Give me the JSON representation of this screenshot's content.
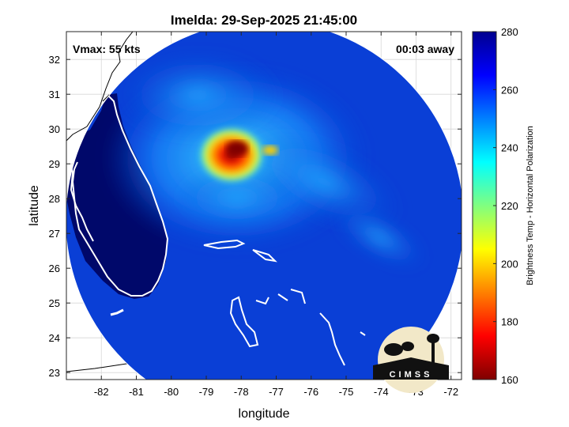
{
  "title": "Imelda: 29-Sep-2025 21:45:00",
  "annotations": {
    "vmax": "Vmax: 55 kts",
    "time_away": "00:03 away"
  },
  "axes": {
    "xlabel": "longitude",
    "ylabel": "latitude",
    "xlim": [
      -83,
      -71.7
    ],
    "ylim": [
      22.8,
      32.8
    ],
    "xticks": [
      "-82",
      "-81",
      "-80",
      "-79",
      "-78",
      "-77",
      "-76",
      "-75",
      "-74",
      "-73",
      "-72"
    ],
    "yticks": [
      "23",
      "24",
      "25",
      "26",
      "27",
      "28",
      "29",
      "30",
      "31",
      "32"
    ],
    "grid": true
  },
  "colorbar": {
    "label": "Brightness Temp - Horizontal Polarization",
    "range": [
      160,
      280
    ],
    "ticks": [
      "160",
      "180",
      "200",
      "220",
      "240",
      "260",
      "280"
    ],
    "colormap": "jet",
    "colors": [
      "#7f0000",
      "#ff0000",
      "#ff8000",
      "#ffff00",
      "#80ff80",
      "#00ffff",
      "#0080ff",
      "#0000ff",
      "#00008f"
    ]
  },
  "logo": {
    "text": "CIMSS"
  },
  "storm_center": {
    "lon": -77.9,
    "lat": 29.3
  },
  "colors": {
    "land": "#00086a",
    "ocean": "#0a3fd6",
    "coastline": "#ffffff",
    "outside_coast": "#000000"
  }
}
